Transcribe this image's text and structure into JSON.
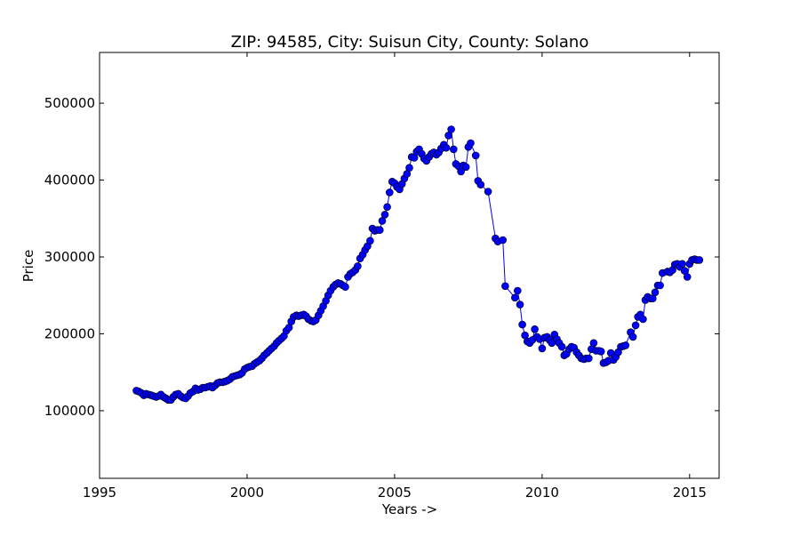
{
  "chart_data": {
    "type": "line",
    "title": "ZIP: 94585, City: Suisun City, County: Solano",
    "xlabel": "Years ->",
    "ylabel": "Price",
    "xlim": [
      1995,
      2016
    ],
    "ylim": [
      12000,
      566000
    ],
    "xticks": [
      1995,
      2000,
      2005,
      2010,
      2015
    ],
    "yticks": [
      100000,
      200000,
      300000,
      400000,
      500000
    ],
    "grid": false,
    "series_color": "#0000ff",
    "marker": "circle",
    "x": [
      1996.25,
      1996.33,
      1996.42,
      1996.5,
      1996.58,
      1996.67,
      1996.75,
      1996.83,
      1996.92,
      1997.0,
      1997.08,
      1997.17,
      1997.25,
      1997.33,
      1997.42,
      1997.5,
      1997.58,
      1997.67,
      1997.75,
      1997.83,
      1997.92,
      1998.0,
      1998.08,
      1998.17,
      1998.25,
      1998.33,
      1998.42,
      1998.5,
      1998.58,
      1998.67,
      1998.75,
      1998.83,
      1998.92,
      1999.0,
      1999.08,
      1999.17,
      1999.25,
      1999.33,
      1999.42,
      1999.5,
      1999.58,
      1999.67,
      1999.75,
      1999.83,
      1999.92,
      2000.0,
      2000.08,
      2000.17,
      2000.25,
      2000.33,
      2000.42,
      2000.5,
      2000.58,
      2000.67,
      2000.75,
      2000.83,
      2000.92,
      2001.0,
      2001.08,
      2001.17,
      2001.25,
      2001.33,
      2001.42,
      2001.5,
      2001.58,
      2001.67,
      2001.75,
      2001.83,
      2001.92,
      2002.0,
      2002.08,
      2002.17,
      2002.25,
      2002.33,
      2002.42,
      2002.5,
      2002.58,
      2002.67,
      2002.75,
      2002.83,
      2002.92,
      2003.0,
      2003.08,
      2003.17,
      2003.25,
      2003.33,
      2003.42,
      2003.5,
      2003.58,
      2003.67,
      2003.75,
      2003.83,
      2003.92,
      2004.0,
      2004.08,
      2004.17,
      2004.25,
      2004.33,
      2004.42,
      2004.5,
      2004.58,
      2004.67,
      2004.75,
      2004.83,
      2004.92,
      2005.0,
      2005.08,
      2005.17,
      2005.25,
      2005.33,
      2005.42,
      2005.5,
      2005.58,
      2005.67,
      2005.75,
      2005.83,
      2005.92,
      2006.0,
      2006.08,
      2006.17,
      2006.25,
      2006.33,
      2006.42,
      2006.5,
      2006.58,
      2006.67,
      2006.75,
      2006.83,
      2006.92,
      2007.0,
      2007.08,
      2007.17,
      2007.25,
      2007.33,
      2007.42,
      2007.5,
      2007.58,
      2007.75,
      2007.83,
      2007.92,
      2008.17,
      2008.42,
      2008.5,
      2008.67,
      2008.75,
      2009.08,
      2009.17,
      2009.25,
      2009.33,
      2009.42,
      2009.5,
      2009.58,
      2009.67,
      2009.75,
      2009.83,
      2009.92,
      2010.0,
      2010.08,
      2010.17,
      2010.25,
      2010.33,
      2010.42,
      2010.5,
      2010.58,
      2010.67,
      2010.75,
      2010.83,
      2010.92,
      2011.0,
      2011.08,
      2011.17,
      2011.25,
      2011.33,
      2011.42,
      2011.5,
      2011.58,
      2011.67,
      2011.75,
      2011.83,
      2011.92,
      2012.0,
      2012.08,
      2012.17,
      2012.25,
      2012.33,
      2012.42,
      2012.5,
      2012.58,
      2012.67,
      2012.75,
      2012.83,
      2013.0,
      2013.08,
      2013.17,
      2013.25,
      2013.33,
      2013.42,
      2013.5,
      2013.58,
      2013.67,
      2013.75,
      2013.83,
      2013.92,
      2014.0,
      2014.08,
      2014.25,
      2014.33,
      2014.42,
      2014.5,
      2014.58,
      2014.67,
      2014.75,
      2014.83,
      2014.92,
      2015.0,
      2015.08,
      2015.17,
      2015.25,
      2015.33
    ],
    "values": [
      126000,
      125000,
      123000,
      120000,
      122000,
      121000,
      120000,
      119000,
      118000,
      119000,
      121000,
      118000,
      116000,
      114000,
      114000,
      118000,
      121000,
      122000,
      119000,
      117000,
      116000,
      119000,
      123000,
      125000,
      129000,
      127000,
      128000,
      130000,
      130000,
      131000,
      132000,
      130000,
      133000,
      136000,
      137000,
      137000,
      138000,
      139000,
      141000,
      144000,
      145000,
      146000,
      147000,
      149000,
      154000,
      156000,
      157000,
      158000,
      161000,
      163000,
      165000,
      168000,
      172000,
      175000,
      178000,
      181000,
      184000,
      188000,
      191000,
      194000,
      197000,
      204000,
      208000,
      216000,
      222000,
      224000,
      223000,
      224000,
      225000,
      223000,
      219000,
      217000,
      216000,
      218000,
      224000,
      230000,
      236000,
      243000,
      250000,
      256000,
      261000,
      264000,
      266000,
      265000,
      263000,
      261000,
      274000,
      278000,
      280000,
      283000,
      288000,
      298000,
      303000,
      309000,
      314000,
      321000,
      337000,
      334000,
      335000,
      335000,
      347000,
      355000,
      365000,
      384000,
      398000,
      396000,
      391000,
      388000,
      395000,
      402000,
      408000,
      416000,
      430000,
      429000,
      437000,
      440000,
      434000,
      428000,
      425000,
      430000,
      434000,
      436000,
      433000,
      436000,
      441000,
      446000,
      442000,
      458000,
      466000,
      440000,
      421000,
      418000,
      411000,
      419000,
      417000,
      443000,
      448000,
      432000,
      399000,
      394000,
      385000,
      324000,
      320000,
      322000,
      262000,
      247000,
      256000,
      238000,
      212000,
      198000,
      190000,
      188000,
      192000,
      206000,
      196000,
      193000,
      181000,
      195000,
      196000,
      192000,
      188000,
      199000,
      193000,
      188000,
      183000,
      172000,
      174000,
      180000,
      183000,
      182000,
      176000,
      172000,
      168000,
      167000,
      168000,
      168000,
      180000,
      188000,
      178000,
      178000,
      177000,
      162000,
      163000,
      165000,
      175000,
      166000,
      170000,
      176000,
      183000,
      184000,
      185000,
      202000,
      196000,
      211000,
      222000,
      225000,
      219000,
      244000,
      248000,
      246000,
      246000,
      254000,
      263000,
      263000,
      279000,
      281000,
      280000,
      283000,
      290000,
      291000,
      287000,
      291000,
      282000,
      274000,
      291000,
      296000,
      297000,
      296000,
      296000
    ]
  }
}
